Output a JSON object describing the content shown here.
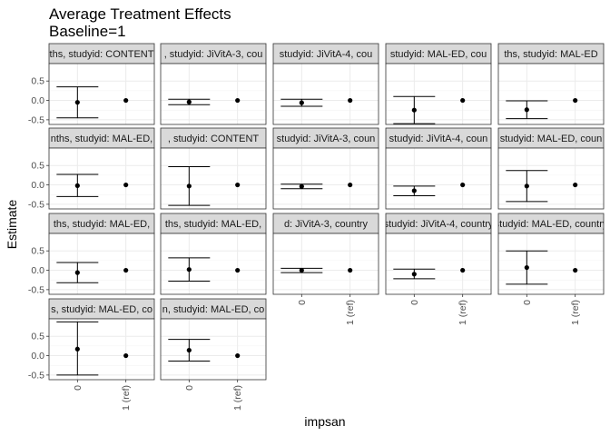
{
  "chart_data": {
    "type": "scatter",
    "title": "Average Treatment Effects",
    "subtitle": "Baseline=1",
    "xlabel": "impsan",
    "ylabel": "Estimate",
    "x_categories": [
      "0",
      "1 (ref)"
    ],
    "y_ticks": [
      0.5,
      0.0,
      -0.5
    ],
    "y_tick_labels": [
      "0.5",
      "0.0",
      "-0.5"
    ],
    "ylim": [
      -0.62,
      0.95
    ],
    "grid": true,
    "legend": "none",
    "panels": [
      {
        "label": "ths, studyid: CONTENT",
        "points": [
          {
            "x": "0",
            "est": -0.05,
            "lo": -0.45,
            "hi": 0.35
          },
          {
            "x": "1 (ref)",
            "est": 0.0
          }
        ]
      },
      {
        "label": ", studyid: JiVitA-3, cou",
        "points": [
          {
            "x": "0",
            "est": -0.04,
            "lo": -0.11,
            "hi": 0.03
          },
          {
            "x": "1 (ref)",
            "est": 0.0
          }
        ]
      },
      {
        "label": "studyid: JiVitA-4, cou",
        "points": [
          {
            "x": "0",
            "est": -0.06,
            "lo": -0.15,
            "hi": 0.03
          },
          {
            "x": "1 (ref)",
            "est": 0.0
          }
        ]
      },
      {
        "label": "studyid: MAL-ED, cou",
        "points": [
          {
            "x": "0",
            "est": -0.25,
            "lo": -0.6,
            "hi": 0.1
          },
          {
            "x": "1 (ref)",
            "est": 0.0
          }
        ]
      },
      {
        "label": "ths, studyid: MAL-ED",
        "points": [
          {
            "x": "0",
            "est": -0.24,
            "lo": -0.47,
            "hi": -0.01
          },
          {
            "x": "1 (ref)",
            "est": 0.0
          }
        ]
      },
      {
        "label": "nths, studyid: MAL-ED,",
        "points": [
          {
            "x": "0",
            "est": -0.02,
            "lo": -0.3,
            "hi": 0.27
          },
          {
            "x": "1 (ref)",
            "est": 0.0
          }
        ]
      },
      {
        "label": ", studyid: CONTENT",
        "points": [
          {
            "x": "0",
            "est": -0.03,
            "lo": -0.53,
            "hi": 0.47
          },
          {
            "x": "1 (ref)",
            "est": 0.0
          }
        ]
      },
      {
        "label": "studyid: JiVitA-3, coun",
        "points": [
          {
            "x": "0",
            "est": -0.04,
            "lo": -0.1,
            "hi": 0.02
          },
          {
            "x": "1 (ref)",
            "est": 0.0
          }
        ]
      },
      {
        "label": "studyid: JiVitA-4, coun",
        "points": [
          {
            "x": "0",
            "est": -0.15,
            "lo": -0.28,
            "hi": -0.03
          },
          {
            "x": "1 (ref)",
            "est": 0.0
          }
        ]
      },
      {
        "label": "studyid: MAL-ED, coun",
        "points": [
          {
            "x": "0",
            "est": -0.03,
            "lo": -0.43,
            "hi": 0.37
          },
          {
            "x": "1 (ref)",
            "est": 0.0
          }
        ]
      },
      {
        "label": "ths, studyid: MAL-ED,",
        "points": [
          {
            "x": "0",
            "est": -0.06,
            "lo": -0.32,
            "hi": 0.2
          },
          {
            "x": "1 (ref)",
            "est": 0.0
          }
        ]
      },
      {
        "label": "ths, studyid: MAL-ED,",
        "points": [
          {
            "x": "0",
            "est": 0.02,
            "lo": -0.28,
            "hi": 0.32
          },
          {
            "x": "1 (ref)",
            "est": 0.0
          }
        ]
      },
      {
        "label": "d: JiVitA-3, country",
        "points": [
          {
            "x": "0",
            "est": 0.0,
            "lo": -0.06,
            "hi": 0.05
          },
          {
            "x": "1 (ref)",
            "est": 0.0
          }
        ]
      },
      {
        "label": "studyid: JiVitA-4, country",
        "points": [
          {
            "x": "0",
            "est": -0.1,
            "lo": -0.22,
            "hi": 0.03
          },
          {
            "x": "1 (ref)",
            "est": 0.0
          }
        ]
      },
      {
        "label": "studyid: MAL-ED, country",
        "points": [
          {
            "x": "0",
            "est": 0.07,
            "lo": -0.36,
            "hi": 0.5
          },
          {
            "x": "1 (ref)",
            "est": 0.0
          }
        ]
      },
      {
        "label": "s, studyid: MAL-ED, co",
        "points": [
          {
            "x": "0",
            "est": 0.17,
            "lo": -0.5,
            "hi": 0.87
          },
          {
            "x": "1 (ref)",
            "est": 0.0
          }
        ]
      },
      {
        "label": "n, studyid: MAL-ED, co",
        "points": [
          {
            "x": "0",
            "est": 0.14,
            "lo": -0.14,
            "hi": 0.42
          },
          {
            "x": "1 (ref)",
            "est": 0.0
          }
        ]
      }
    ]
  }
}
